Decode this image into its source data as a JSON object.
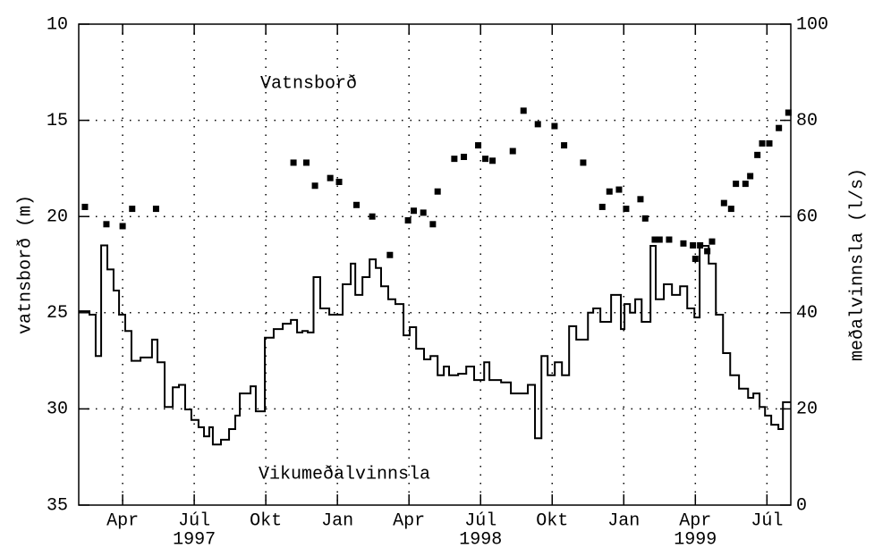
{
  "chart_data": {
    "type": "scatter+step",
    "annotations": [
      "Vatnsborð",
      "Vikumeðalvinnsla"
    ],
    "ylabel": "vatnsborð (m)",
    "y2label": "meðalvinnsla (l/s)",
    "xlim": [
      1.16,
      31.0
    ],
    "xticks": [
      {
        "value": 3,
        "label": "Apr"
      },
      {
        "value": 6,
        "label": "Júl"
      },
      {
        "value": 9,
        "label": "Okt"
      },
      {
        "value": 12,
        "label": "Jan"
      },
      {
        "value": 15,
        "label": "Apr"
      },
      {
        "value": 18,
        "label": "Júl"
      },
      {
        "value": 21,
        "label": "Okt"
      },
      {
        "value": 24,
        "label": "Jan"
      },
      {
        "value": 27,
        "label": "Apr"
      },
      {
        "value": 30,
        "label": "Júl"
      }
    ],
    "xgroup_labels": [
      {
        "value": 6,
        "label": "1997"
      },
      {
        "value": 18,
        "label": "1998"
      },
      {
        "value": 27,
        "label": "1999"
      }
    ],
    "ylim": [
      10,
      35
    ],
    "y_inverted": true,
    "yticks": [
      10,
      15,
      20,
      25,
      30,
      35
    ],
    "y2lim": [
      0,
      100
    ],
    "y2ticks": [
      0,
      20,
      40,
      60,
      80,
      100
    ],
    "grid": true,
    "series": [
      {
        "name": "Vatnsborð",
        "kind": "scatter",
        "color": "#000000",
        "x": [
          1.42,
          2.32,
          3.0,
          3.4,
          4.4,
          10.16,
          10.7,
          11.06,
          11.7,
          12.07,
          12.8,
          13.46,
          14.2,
          14.96,
          15.2,
          15.6,
          16.0,
          16.2,
          16.9,
          17.3,
          17.9,
          18.2,
          18.5,
          19.35,
          19.8,
          20.4,
          21.1,
          21.5,
          22.3,
          23.1,
          23.4,
          23.8,
          24.1,
          24.7,
          24.9,
          25.3,
          25.5,
          25.9,
          26.5,
          26.9,
          27.0,
          27.2,
          27.5,
          27.7,
          28.2,
          28.5,
          28.7,
          29.1,
          29.3,
          29.6,
          29.8,
          30.1,
          30.5,
          30.9
        ],
        "values": [
          19.5,
          20.4,
          20.5,
          19.6,
          19.6,
          17.2,
          17.2,
          18.4,
          18.0,
          18.2,
          19.4,
          20.0,
          22.0,
          20.2,
          19.7,
          19.8,
          20.4,
          18.7,
          17.0,
          16.9,
          16.3,
          17.0,
          17.1,
          16.6,
          14.5,
          15.2,
          15.3,
          16.3,
          17.2,
          19.5,
          18.7,
          18.6,
          19.6,
          19.1,
          20.1,
          21.2,
          21.2,
          21.2,
          21.4,
          21.5,
          22.2,
          21.5,
          21.8,
          21.3,
          19.3,
          19.6,
          18.3,
          18.3,
          17.9,
          16.8,
          16.2,
          16.2,
          15.4,
          14.6
        ]
      },
      {
        "name": "Vikumeðalvinnsla",
        "kind": "step",
        "axis": "y2",
        "color": "#000000",
        "x": [
          1.16,
          1.61,
          1.87,
          2.1,
          2.36,
          2.62,
          2.85,
          3.11,
          3.37,
          3.75,
          4.23,
          4.46,
          4.76,
          5.1,
          5.36,
          5.62,
          5.88,
          6.18,
          6.41,
          6.63,
          6.78,
          7.12,
          7.46,
          7.72,
          7.91,
          8.17,
          8.36,
          8.58,
          8.96,
          9.33,
          9.71,
          10.05,
          10.31,
          10.53,
          10.76,
          11.0,
          11.28,
          11.66,
          12.22,
          12.56,
          12.75,
          13.05,
          13.35,
          13.61,
          13.83,
          14.13,
          14.43,
          14.77,
          15.03,
          15.3,
          15.63,
          15.9,
          16.2,
          16.46,
          16.68,
          17.06,
          17.4,
          17.73,
          18.15,
          18.37,
          18.86,
          19.27,
          19.98,
          20.28,
          20.55,
          20.81,
          21.11,
          21.41,
          21.71,
          22.01,
          22.5,
          22.72,
          23.02,
          23.47,
          23.88,
          24.03,
          24.26,
          24.48,
          24.75,
          25.12,
          25.34,
          25.68,
          26.02,
          26.36,
          26.66,
          26.96,
          27.18,
          27.56,
          27.86,
          28.16,
          28.46,
          28.83,
          29.21,
          29.43,
          29.69,
          29.92,
          30.18,
          30.48,
          30.67
        ],
        "values": [
          40.3,
          39.6,
          31,
          54,
          49,
          44.6,
          39.6,
          36.2,
          30,
          30.7,
          34.4,
          29.7,
          20.4,
          24.5,
          25,
          19.9,
          17.7,
          16.2,
          14.3,
          16.2,
          12.6,
          13.6,
          15.8,
          18.6,
          23.2,
          23.2,
          24.7,
          19.5,
          34.8,
          36.6,
          37.7,
          38.5,
          35.9,
          36.2,
          35.9,
          47.4,
          40.9,
          39.6,
          45.9,
          50.2,
          43.7,
          47.4,
          51.1,
          49.3,
          45.5,
          42.8,
          41.8,
          35.3,
          37,
          32.5,
          30.3,
          31,
          27,
          28.8,
          27,
          27.3,
          28.8,
          26,
          29.7,
          26,
          25.5,
          23.2,
          25,
          13.9,
          31,
          27,
          29.7,
          27,
          37.2,
          34.4,
          40,
          40.9,
          38.1,
          43.7,
          36.6,
          41.8,
          40,
          42.8,
          38.1,
          53.9,
          42.8,
          45.9,
          43.7,
          45.5,
          40.9,
          39,
          53.9,
          50.2,
          39.6,
          31.6,
          27,
          24.2,
          22.3,
          23.2,
          20.4,
          18.6,
          16.7,
          15.8,
          21.4
        ]
      }
    ]
  }
}
